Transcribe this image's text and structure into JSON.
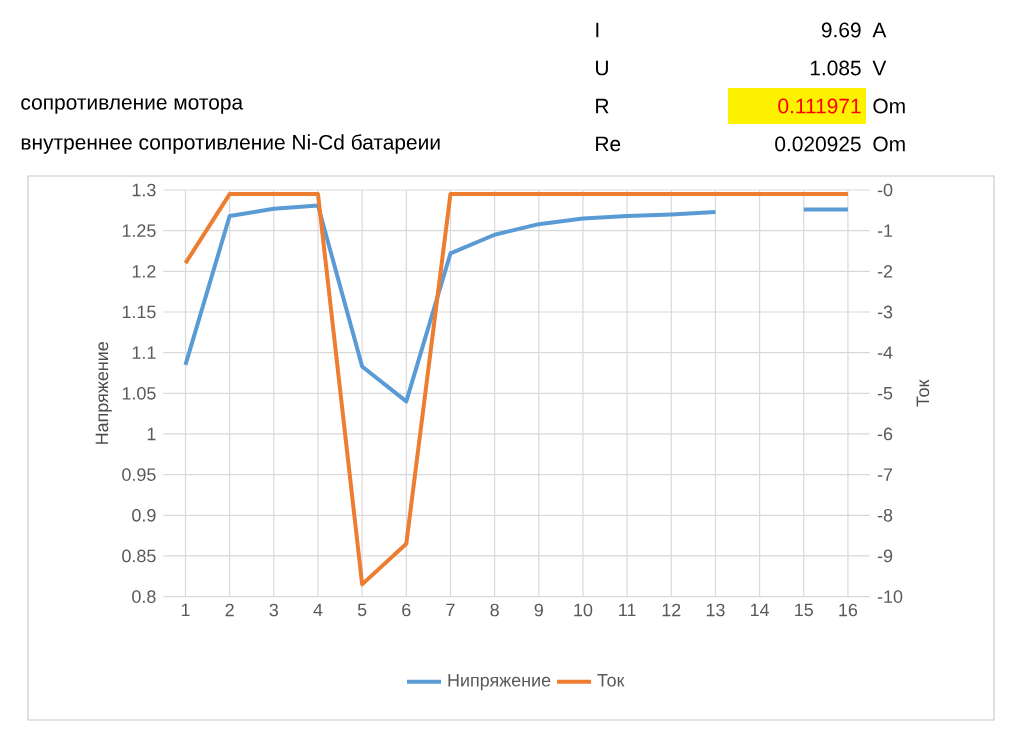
{
  "chart_data": {
    "type": "line",
    "categories": [
      "1",
      "2",
      "3",
      "4",
      "5",
      "6",
      "7",
      "8",
      "9",
      "10",
      "11",
      "12",
      "13",
      "14",
      "15",
      "16"
    ],
    "series": [
      {
        "name": "Нипряжение",
        "color": "#5b9bd5",
        "values": [
          1.085,
          1.268,
          1.277,
          1.281,
          1.083,
          1.04,
          1.222,
          1.245,
          1.258,
          1.265,
          1.268,
          1.27,
          1.273,
          null,
          1.276,
          1.276
        ]
      },
      {
        "name": "Ток",
        "color": "#ed7d31",
        "axis": "y2",
        "values": [
          -1.8,
          -0.1,
          -0.1,
          -0.1,
          -9.7,
          -8.7,
          -0.1,
          -0.1,
          -0.1,
          -0.1,
          -0.1,
          -0.1,
          -0.1,
          -0.1,
          -0.1,
          -0.1
        ]
      }
    ],
    "ylabel": "Напряжение",
    "y2label": "Ток",
    "ylim": [
      0.8,
      1.3
    ],
    "yticks": [
      0.8,
      0.85,
      0.9,
      0.95,
      1,
      1.05,
      1.1,
      1.15,
      1.2,
      1.25,
      1.3
    ],
    "y2lim": [
      -10,
      0
    ],
    "y2ticks": [
      -10,
      -9,
      -8,
      -7,
      -6,
      -5,
      -4,
      -3,
      -2,
      -1,
      {
        "value": 0,
        "label": "-0"
      }
    ],
    "grid": true,
    "legend": "bottom",
    "line_style": "solid",
    "annotations": [
      "I",
      "9.69",
      "A",
      "U",
      "1.085",
      "V",
      "сопротивление мотора",
      "R",
      "0.111971",
      "Om",
      "внутреннее сопротивление Ni-Cd батареии",
      "Re",
      "0.020925",
      "Om"
    ]
  }
}
